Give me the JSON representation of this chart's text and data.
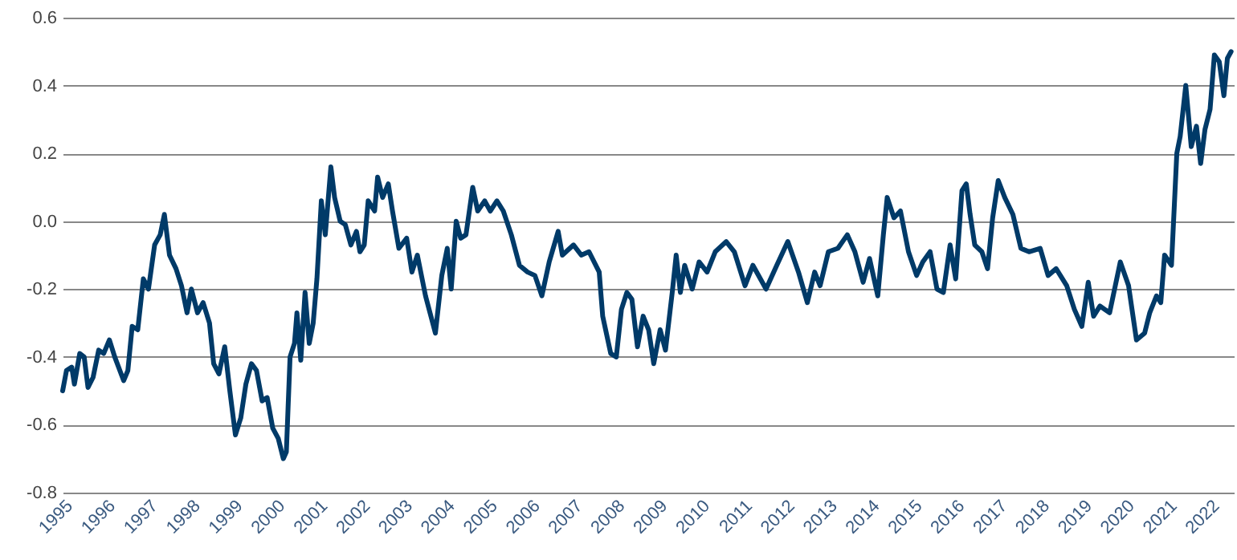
{
  "chart_data": {
    "type": "line",
    "x": [
      "1995-01-01",
      "1995-02-03",
      "1995-03-20",
      "1995-04-12",
      "1995-05-28",
      "1995-07-05",
      "1995-08-07",
      "1995-09-20",
      "1995-11-07",
      "1995-12-20",
      "1996-02-07",
      "1996-03-24",
      "1996-06-09",
      "1996-07-15",
      "1996-08-21",
      "1996-10-08",
      "1996-11-25",
      "1997-01-08",
      "1997-03-02",
      "1997-04-19",
      "1997-05-25",
      "1997-07-08",
      "1997-09-02",
      "1997-10-19",
      "1997-12-06",
      "1998-01-12",
      "1998-03-06",
      "1998-04-23",
      "1998-06-17",
      "1998-07-23",
      "1998-09-06",
      "1998-10-26",
      "1998-12-09",
      "1999-01-26",
      "1999-03-13",
      "1999-04-26",
      "1999-06-13",
      "1999-07-26",
      "1999-09-13",
      "1999-10-26",
      "1999-12-13",
      "2000-01-29",
      "2000-03-13",
      "2000-04-08",
      "2000-05-10",
      "2000-06-17",
      "2000-07-08",
      "2000-08-10",
      "2000-09-16",
      "2000-10-22",
      "2000-11-25",
      "2000-12-27",
      "2001-02-03",
      "2001-03-09",
      "2001-04-26",
      "2001-05-28",
      "2001-07-15",
      "2001-08-28",
      "2001-10-15",
      "2001-12-02",
      "2002-01-01",
      "2002-02-07",
      "2002-03-13",
      "2002-05-07",
      "2002-06-02",
      "2002-07-15",
      "2002-09-02",
      "2002-10-08",
      "2002-12-02",
      "2003-02-07",
      "2003-03-24",
      "2003-05-10",
      "2003-07-19",
      "2003-10-12",
      "2003-12-06",
      "2004-01-22",
      "2004-02-25",
      "2004-04-08",
      "2004-05-16",
      "2004-07-01",
      "2004-08-28",
      "2004-10-10",
      "2004-12-09",
      "2005-01-26",
      "2005-03-24",
      "2005-05-18",
      "2005-07-26",
      "2005-10-04",
      "2005-12-13",
      "2006-02-14",
      "2006-04-15",
      "2006-06-17",
      "2006-09-02",
      "2006-10-08",
      "2007-01-12",
      "2007-03-20",
      "2007-05-25",
      "2007-08-21",
      "2007-09-20",
      "2007-11-28",
      "2008-01-15",
      "2008-02-28",
      "2008-04-15",
      "2008-05-28",
      "2008-07-15",
      "2008-09-02",
      "2008-10-19",
      "2008-12-02",
      "2009-01-26",
      "2009-03-13",
      "2009-05-10",
      "2009-06-13",
      "2009-07-19",
      "2009-08-25",
      "2009-10-29",
      "2009-12-27",
      "2010-03-06",
      "2010-05-15",
      "2010-08-17",
      "2010-10-26",
      "2011-01-26",
      "2011-04-04",
      "2011-07-26",
      "2011-10-26",
      "2012-01-29",
      "2012-04-30",
      "2012-07-15",
      "2012-09-16",
      "2012-11-02",
      "2013-01-12",
      "2013-04-04",
      "2013-06-24",
      "2013-08-28",
      "2013-11-07",
      "2014-01-01",
      "2014-03-13",
      "2014-04-30",
      "2014-06-02",
      "2014-07-30",
      "2014-09-24",
      "2014-12-02",
      "2015-02-10",
      "2015-04-04",
      "2015-06-06",
      "2015-08-04",
      "2015-09-28",
      "2015-11-25",
      "2016-01-12",
      "2016-03-06",
      "2016-04-12",
      "2016-05-15",
      "2016-06-24",
      "2016-08-24",
      "2016-10-12",
      "2016-11-25",
      "2017-01-12",
      "2017-03-09",
      "2017-05-18",
      "2017-07-26",
      "2017-10-04",
      "2018-01-08",
      "2018-03-17",
      "2018-05-25",
      "2018-08-24",
      "2018-10-29",
      "2019-01-01",
      "2019-02-25",
      "2019-04-12",
      "2019-06-06",
      "2019-08-28",
      "2019-11-28",
      "2020-02-07",
      "2020-04-15",
      "2020-06-24",
      "2020-08-07",
      "2020-10-04",
      "2020-11-10",
      "2020-12-13",
      "2021-02-10",
      "2021-03-28",
      "2021-04-26",
      "2021-06-13",
      "2021-07-30",
      "2021-09-13",
      "2021-10-19",
      "2021-11-25",
      "2022-01-08",
      "2022-02-14",
      "2022-03-28",
      "2022-05-07",
      "2022-06-06",
      "2022-07-08"
    ],
    "series": [
      {
        "color": "#003a68",
        "values": [
          -0.5,
          -0.44,
          -0.43,
          -0.48,
          -0.39,
          -0.4,
          -0.49,
          -0.46,
          -0.38,
          -0.39,
          -0.35,
          -0.4,
          -0.47,
          -0.44,
          -0.31,
          -0.32,
          -0.17,
          -0.2,
          -0.07,
          -0.04,
          0.02,
          -0.1,
          -0.14,
          -0.19,
          -0.27,
          -0.2,
          -0.27,
          -0.24,
          -0.3,
          -0.42,
          -0.45,
          -0.37,
          -0.5,
          -0.63,
          -0.58,
          -0.48,
          -0.42,
          -0.44,
          -0.53,
          -0.52,
          -0.61,
          -0.64,
          -0.7,
          -0.68,
          -0.4,
          -0.36,
          -0.27,
          -0.41,
          -0.21,
          -0.36,
          -0.3,
          -0.17,
          0.06,
          -0.04,
          0.16,
          0.07,
          0.0,
          -0.01,
          -0.07,
          -0.03,
          -0.09,
          -0.07,
          0.06,
          0.03,
          0.13,
          0.07,
          0.11,
          0.03,
          -0.08,
          -0.05,
          -0.15,
          -0.1,
          -0.22,
          -0.33,
          -0.16,
          -0.08,
          -0.2,
          0.0,
          -0.05,
          -0.04,
          0.1,
          0.03,
          0.06,
          0.03,
          0.06,
          0.03,
          -0.04,
          -0.13,
          -0.15,
          -0.16,
          -0.22,
          -0.12,
          -0.03,
          -0.1,
          -0.07,
          -0.1,
          -0.09,
          -0.15,
          -0.28,
          -0.39,
          -0.4,
          -0.26,
          -0.21,
          -0.23,
          -0.37,
          -0.28,
          -0.32,
          -0.42,
          -0.32,
          -0.38,
          -0.21,
          -0.1,
          -0.21,
          -0.13,
          -0.2,
          -0.12,
          -0.15,
          -0.09,
          -0.06,
          -0.09,
          -0.19,
          -0.13,
          -0.2,
          -0.13,
          -0.06,
          -0.15,
          -0.24,
          -0.15,
          -0.19,
          -0.09,
          -0.08,
          -0.04,
          -0.09,
          -0.18,
          -0.11,
          -0.22,
          -0.04,
          0.07,
          0.01,
          0.03,
          -0.09,
          -0.16,
          -0.12,
          -0.09,
          -0.2,
          -0.21,
          -0.07,
          -0.17,
          0.09,
          0.11,
          0.02,
          -0.07,
          -0.09,
          -0.14,
          0.01,
          0.12,
          0.07,
          0.02,
          -0.08,
          -0.09,
          -0.08,
          -0.16,
          -0.14,
          -0.19,
          -0.26,
          -0.31,
          -0.18,
          -0.28,
          -0.25,
          -0.27,
          -0.12,
          -0.19,
          -0.35,
          -0.33,
          -0.27,
          -0.22,
          -0.24,
          -0.1,
          -0.13,
          0.2,
          0.25,
          0.4,
          0.22,
          0.28,
          0.17,
          0.27,
          0.33,
          0.49,
          0.47,
          0.37,
          0.48,
          0.5
        ]
      }
    ],
    "xlim": [
      "1995-01-01",
      "2022-07-31"
    ],
    "xticks": [
      "1995",
      "1996",
      "1997",
      "1998",
      "1999",
      "2000",
      "2001",
      "2002",
      "2003",
      "2004",
      "2005",
      "2006",
      "2007",
      "2008",
      "2009",
      "2010",
      "2011",
      "2012",
      "2013",
      "2014",
      "2015",
      "2016",
      "2017",
      "2018",
      "2019",
      "2020",
      "2021",
      "2022"
    ],
    "ylim": [
      -0.8,
      0.6
    ],
    "yticks": [
      {
        "value": -0.8,
        "label": "-0.8"
      },
      {
        "value": -0.6,
        "label": "-0.6"
      },
      {
        "value": -0.4,
        "label": "-0.4"
      },
      {
        "value": -0.2,
        "label": "-0.2"
      },
      {
        "value": 0,
        "label": "0.0"
      },
      0.2,
      0.4,
      0.6
    ],
    "grid": "y",
    "marker": "none",
    "line_style": "solid"
  }
}
